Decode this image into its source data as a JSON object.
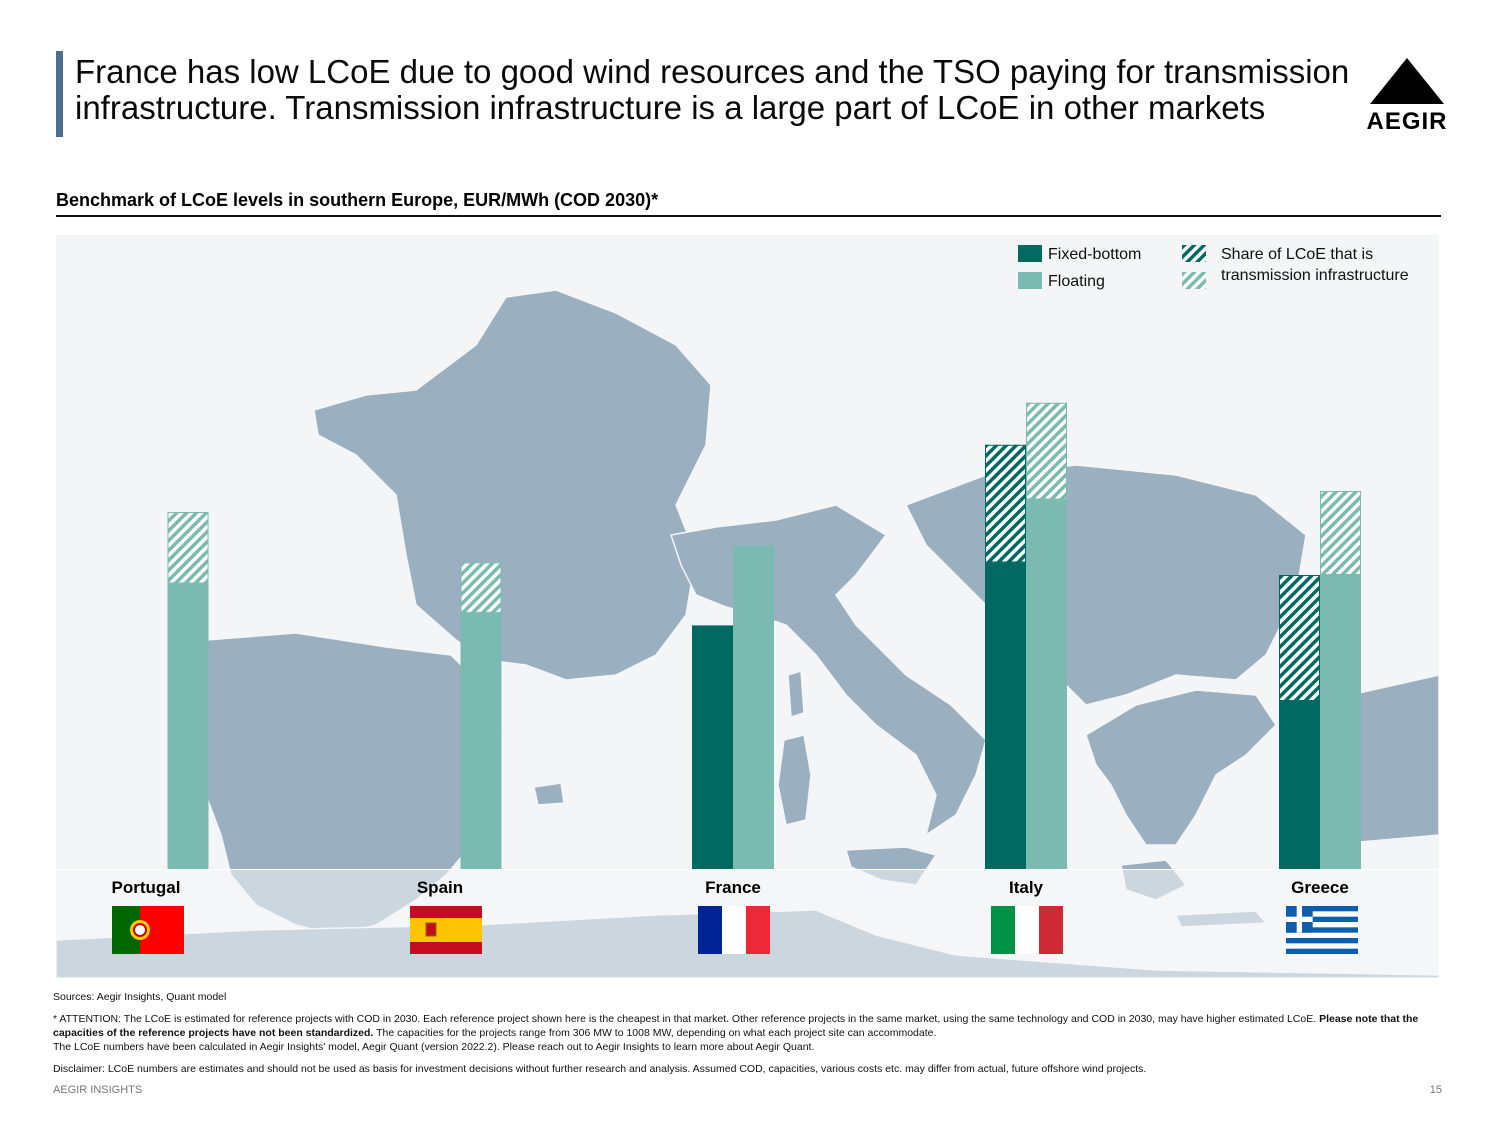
{
  "header": {
    "title": "France has low LCoE due to good wind resources and the TSO paying for transmission infrastructure. Transmission infrastructure is a large part of LCoE in other markets",
    "logo_text": "AEGIR",
    "logo_icon": "triangle-icon"
  },
  "subtitle": "Benchmark of LCoE levels in southern Europe, EUR/MWh (COD 2030)*",
  "legend": {
    "fixed_bottom": "Fixed-bottom",
    "floating": "Floating",
    "transmission_line1": "Share of LCoE that is",
    "transmission_line2": "transmission infrastructure"
  },
  "colors": {
    "fixed_bottom": "#006a62",
    "floating": "#7bbab0",
    "map_land": "#9aafbf",
    "background": "#f4f5f7"
  },
  "chart_data": {
    "type": "bar",
    "stacked": true,
    "title": "Benchmark of LCoE levels in southern Europe, EUR/MWh (COD 2030)*",
    "categories": [
      "Portugal",
      "Spain",
      "France",
      "Italy",
      "Greece"
    ],
    "unit": "EUR/MWh",
    "value_axis_shown": false,
    "series": [
      {
        "name": "Fixed-bottom",
        "values": [
          null,
          null,
          58,
          101,
          70
        ]
      },
      {
        "name": "Floating",
        "values": [
          85,
          73,
          77,
          111,
          90
        ]
      }
    ],
    "transmission_share": {
      "Fixed-bottom": [
        null,
        null,
        0,
        28,
        30
      ],
      "Floating": [
        17,
        12,
        0,
        23,
        20
      ]
    },
    "note": "values are relative estimates read from bar heights; no value axis is printed"
  },
  "flags": [
    "portugal-flag-icon",
    "spain-flag-icon",
    "france-flag-icon",
    "italy-flag-icon",
    "greece-flag-icon"
  ],
  "notes": {
    "sources": "Sources: Aegir Insights, Quant model",
    "attention_a": "* ATTENTION: The LCoE is estimated for reference projects with COD in 2030. Each reference project shown here is the cheapest in that market. Other reference projects in the same market, using the same technology and COD in 2030, may have higher estimated LCoE. ",
    "attention_bold": "Please note that the capacities of the reference projects have not been standardized.",
    "attention_b": " The capacities for the projects range from 306 MW to 1008 MW, depending on what each project site can accommodate.",
    "model": "The LCoE numbers have been calculated in Aegir Insights' model, Aegir Quant (version 2022.2). Please reach out to Aegir Insights to learn more about Aegir Quant.",
    "disclaimer": "Disclaimer: LCoE numbers are estimates and should not be used as basis for investment decisions without further research and analysis. Assumed COD, capacities, various costs etc. may differ from actual, future offshore wind projects."
  },
  "footer": {
    "left": "AEGIR INSIGHTS",
    "page": "15"
  }
}
